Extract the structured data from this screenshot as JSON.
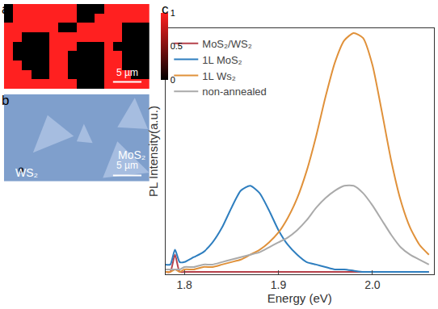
{
  "chart_data": [
    {
      "type": "heatmap",
      "panel_label": "a",
      "z": [
        [
          0,
          1,
          1,
          1,
          1,
          1,
          1,
          1,
          0,
          0,
          0,
          1,
          1,
          1,
          1,
          1
        ],
        [
          0,
          1,
          1,
          1,
          1,
          1,
          1,
          1,
          0,
          0,
          1,
          1,
          1,
          1,
          1,
          1
        ],
        [
          1,
          1,
          1,
          1,
          1,
          1,
          0,
          0,
          1,
          1,
          1,
          1,
          1,
          0,
          0,
          0
        ],
        [
          1,
          1,
          0,
          0,
          0,
          1,
          1,
          1,
          1,
          1,
          1,
          1,
          1,
          0,
          0,
          0
        ],
        [
          1,
          0,
          0,
          0,
          0,
          1,
          1,
          1,
          0,
          0,
          0,
          1,
          0,
          0,
          0,
          0
        ],
        [
          1,
          0,
          0,
          0,
          0,
          1,
          1,
          0,
          0,
          0,
          0,
          1,
          1,
          0,
          0,
          0
        ],
        [
          1,
          1,
          0,
          0,
          0,
          1,
          1,
          0,
          0,
          0,
          0,
          1,
          1,
          0,
          0,
          0
        ],
        [
          1,
          1,
          1,
          0,
          0,
          1,
          1,
          0,
          0,
          0,
          0,
          1,
          1,
          1,
          0,
          0
        ],
        [
          1,
          1,
          1,
          1,
          1,
          1,
          1,
          1,
          0,
          0,
          0,
          1,
          1,
          1,
          1,
          1
        ]
      ],
      "colorbar": {
        "range": [
          0,
          1
        ],
        "ticks": [
          0,
          0.5,
          1
        ]
      },
      "scale_bar": "5 µm"
    },
    {
      "type": "image",
      "panel_label": "b",
      "labels": [
        "MoS₂",
        "WS₂"
      ],
      "scale_bar": "5 µm"
    },
    {
      "type": "line",
      "panel_label": "c",
      "x_label": "Energy (eV)",
      "y_label": "PL Intensity(a.u.)",
      "x": [
        1.78,
        1.785,
        1.79,
        1.795,
        1.8,
        1.81,
        1.82,
        1.83,
        1.84,
        1.85,
        1.86,
        1.87,
        1.88,
        1.89,
        1.9,
        1.91,
        1.92,
        1.93,
        1.94,
        1.95,
        1.96,
        1.97,
        1.98,
        1.99,
        2.0,
        2.01,
        2.02,
        2.03,
        2.04,
        2.05,
        2.06
      ],
      "series": [
        {
          "name": "MoS₂/WS₂",
          "color": "#b5404a",
          "values": [
            0.01,
            0.01,
            0.08,
            0.01,
            0.01,
            0.01,
            0.01,
            0.01,
            0.01,
            0.01,
            0.01,
            0.01,
            0.01,
            0.01,
            0.01,
            0.01,
            0.01,
            0.01,
            0.01,
            0.01,
            0.01,
            0.01,
            0.01,
            0.01,
            0.01,
            0.01,
            0.01,
            0.01,
            0.01,
            0.01,
            0.01
          ]
        },
        {
          "name": "1L MoS₂",
          "color": "#2e7ebf",
          "values": [
            0.04,
            0.04,
            0.1,
            0.05,
            0.05,
            0.07,
            0.09,
            0.13,
            0.19,
            0.27,
            0.34,
            0.36,
            0.33,
            0.26,
            0.18,
            0.12,
            0.08,
            0.05,
            0.04,
            0.03,
            0.02,
            0.02,
            0.015,
            0.01,
            0.01,
            0.01,
            0.01,
            0.01,
            0.01,
            0.01,
            0.01
          ]
        },
        {
          "name": "1L Ws₂",
          "color": "#e0913a",
          "values": [
            0.01,
            0.01,
            0.02,
            0.01,
            0.02,
            0.02,
            0.03,
            0.03,
            0.04,
            0.05,
            0.06,
            0.08,
            0.1,
            0.13,
            0.17,
            0.23,
            0.31,
            0.42,
            0.56,
            0.72,
            0.86,
            0.95,
            0.98,
            0.96,
            0.85,
            0.66,
            0.46,
            0.3,
            0.19,
            0.12,
            0.08
          ]
        },
        {
          "name": "non-annealed",
          "color": "#aaaaaa",
          "values": [
            0.02,
            0.02,
            0.02,
            0.02,
            0.03,
            0.03,
            0.04,
            0.04,
            0.05,
            0.06,
            0.07,
            0.08,
            0.09,
            0.11,
            0.13,
            0.15,
            0.18,
            0.22,
            0.27,
            0.31,
            0.34,
            0.36,
            0.36,
            0.33,
            0.28,
            0.22,
            0.16,
            0.11,
            0.08,
            0.06,
            0.04
          ]
        }
      ],
      "xlim": [
        1.78,
        2.065
      ],
      "xticks": [
        1.8,
        1.9,
        {
          "value": 2,
          "label": "2.0"
        }
      ],
      "ylim": [
        0,
        1
      ],
      "yticks": [],
      "tick_labels": "x",
      "legend": "top left",
      "grid": false
    }
  ]
}
